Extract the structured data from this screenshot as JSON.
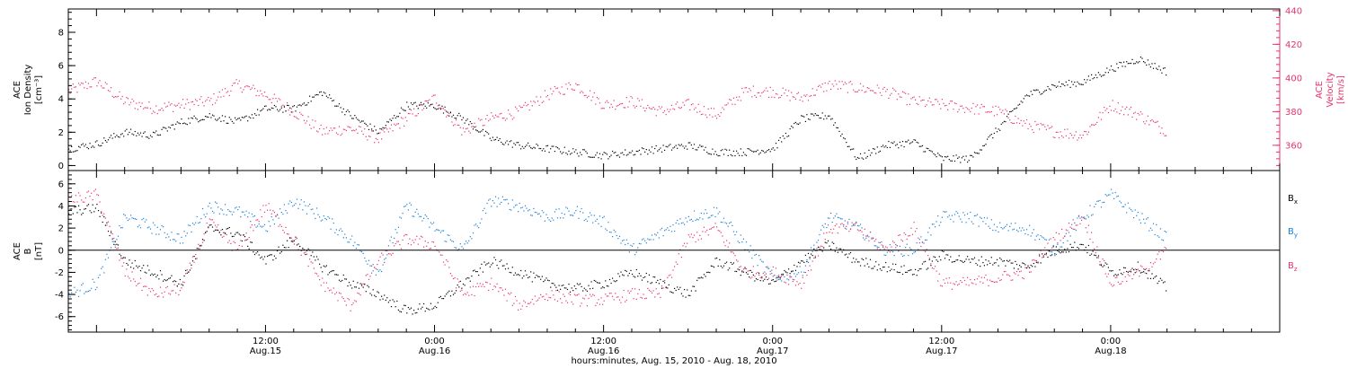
{
  "chart_data": {
    "type": "scatter",
    "time_axis": {
      "range": [
        "2010-08-14 22:00",
        "2010-08-18 12:00"
      ],
      "ticks": [
        {
          "t": "2010-08-15 12:00",
          "top": "12:00",
          "bottom": "Aug.15"
        },
        {
          "t": "2010-08-16 00:00",
          "top": "0:00",
          "bottom": "Aug.16"
        },
        {
          "t": "2010-08-16 12:00",
          "top": "12:00",
          "bottom": "Aug.16"
        },
        {
          "t": "2010-08-17 00:00",
          "top": "0:00",
          "bottom": "Aug.17"
        },
        {
          "t": "2010-08-17 12:00",
          "top": "12:00",
          "bottom": "Aug.17"
        },
        {
          "t": "2010-08-18 00:00",
          "top": "0:00",
          "bottom": "Aug.18"
        }
      ],
      "label": "hours:minutes, Aug. 15, 2010 - Aug. 18, 2010"
    },
    "panels": [
      {
        "name": "plasma",
        "left_axis": {
          "label_lines": [
            "ACE",
            "Ion Density",
            "[cm⁻³]"
          ],
          "ylim": [
            -0.3,
            9.4
          ],
          "ticks": [
            0,
            2,
            4,
            6,
            8
          ],
          "color": "#000000"
        },
        "right_axis": {
          "label_lines": [
            "ACE",
            "Velocity",
            "[km/s]"
          ],
          "ylim": [
            345,
            441
          ],
          "ticks": [
            360,
            380,
            400,
            420,
            440
          ],
          "color": "#e8336a"
        },
        "series": [
          {
            "name": "Ion Density",
            "axis": "left",
            "color": "#000000",
            "x": [
              "2010-08-14 22:00",
              "2010-08-15 00:00",
              "2010-08-15 02:00",
              "2010-08-15 04:00",
              "2010-08-15 06:00",
              "2010-08-15 08:00",
              "2010-08-15 10:00",
              "2010-08-15 12:00",
              "2010-08-15 14:00",
              "2010-08-15 16:00",
              "2010-08-15 18:00",
              "2010-08-15 20:00",
              "2010-08-15 22:00",
              "2010-08-16 00:00",
              "2010-08-16 02:00",
              "2010-08-16 04:00",
              "2010-08-16 06:00",
              "2010-08-16 08:00",
              "2010-08-16 10:00",
              "2010-08-16 12:00",
              "2010-08-16 14:00",
              "2010-08-16 16:00",
              "2010-08-16 18:00",
              "2010-08-16 20:00",
              "2010-08-16 22:00",
              "2010-08-17 00:00",
              "2010-08-17 02:00",
              "2010-08-17 04:00",
              "2010-08-17 06:00",
              "2010-08-17 08:00",
              "2010-08-17 10:00",
              "2010-08-17 12:00",
              "2010-08-17 14:00",
              "2010-08-17 16:00",
              "2010-08-17 18:00",
              "2010-08-17 20:00",
              "2010-08-17 22:00",
              "2010-08-18 00:00",
              "2010-08-18 02:00",
              "2010-08-18 04:00"
            ],
            "y": [
              1.0,
              1.3,
              2.0,
              1.8,
              2.6,
              3.0,
              2.6,
              3.4,
              3.4,
              4.4,
              3.0,
              2.0,
              3.6,
              3.6,
              2.8,
              1.6,
              1.2,
              1.0,
              0.8,
              0.6,
              0.8,
              1.0,
              1.2,
              0.8,
              0.8,
              1.0,
              2.8,
              3.0,
              0.4,
              1.2,
              1.4,
              0.4,
              0.4,
              2.2,
              4.2,
              4.8,
              5.0,
              5.8,
              6.4,
              5.6
            ]
          },
          {
            "name": "Velocity",
            "axis": "right",
            "color": "#e8336a",
            "x": [
              "2010-08-14 22:00",
              "2010-08-15 00:00",
              "2010-08-15 02:00",
              "2010-08-15 04:00",
              "2010-08-15 06:00",
              "2010-08-15 08:00",
              "2010-08-15 10:00",
              "2010-08-15 12:00",
              "2010-08-15 14:00",
              "2010-08-15 16:00",
              "2010-08-15 18:00",
              "2010-08-15 20:00",
              "2010-08-15 22:00",
              "2010-08-16 00:00",
              "2010-08-16 02:00",
              "2010-08-16 04:00",
              "2010-08-16 06:00",
              "2010-08-16 08:00",
              "2010-08-16 10:00",
              "2010-08-16 12:00",
              "2010-08-16 14:00",
              "2010-08-16 16:00",
              "2010-08-16 18:00",
              "2010-08-16 20:00",
              "2010-08-16 22:00",
              "2010-08-17 00:00",
              "2010-08-17 02:00",
              "2010-08-17 04:00",
              "2010-08-17 06:00",
              "2010-08-17 08:00",
              "2010-08-17 10:00",
              "2010-08-17 12:00",
              "2010-08-17 14:00",
              "2010-08-17 16:00",
              "2010-08-17 18:00",
              "2010-08-17 20:00",
              "2010-08-17 22:00",
              "2010-08-18 00:00",
              "2010-08-18 02:00",
              "2010-08-18 04:00"
            ],
            "y": [
              392,
              398,
              386,
              382,
              384,
              386,
              396,
              390,
              380,
              368,
              370,
              364,
              376,
              388,
              368,
              376,
              380,
              390,
              396,
              384,
              386,
              380,
              384,
              378,
              392,
              392,
              388,
              396,
              394,
              392,
              386,
              384,
              382,
              380,
              372,
              368,
              366,
              384,
              378,
              368
            ]
          }
        ]
      },
      {
        "name": "magnetic",
        "left_axis": {
          "label_lines": [
            "ACE",
            "B",
            "[nT]"
          ],
          "ylim": [
            -7.4,
            7.2
          ],
          "ticks": [
            -6,
            -4,
            -2,
            0,
            2,
            4,
            6
          ],
          "zero_line": true,
          "color": "#000000"
        },
        "legend": {
          "placement": "right",
          "entries": [
            {
              "label": "B",
              "sub": "x",
              "color": "#000000"
            },
            {
              "label": "B",
              "sub": "y",
              "color": "#1a7fd8"
            },
            {
              "label": "B",
              "sub": "z",
              "color": "#e8336a"
            }
          ]
        },
        "series": [
          {
            "name": "Bx",
            "color": "#000000",
            "x": [
              "2010-08-14 22:00",
              "2010-08-15 00:00",
              "2010-08-15 02:00",
              "2010-08-15 04:00",
              "2010-08-15 06:00",
              "2010-08-15 08:00",
              "2010-08-15 10:00",
              "2010-08-15 12:00",
              "2010-08-15 14:00",
              "2010-08-15 16:00",
              "2010-08-15 18:00",
              "2010-08-15 20:00",
              "2010-08-15 22:00",
              "2010-08-16 00:00",
              "2010-08-16 02:00",
              "2010-08-16 04:00",
              "2010-08-16 06:00",
              "2010-08-16 08:00",
              "2010-08-16 10:00",
              "2010-08-16 12:00",
              "2010-08-16 14:00",
              "2010-08-16 16:00",
              "2010-08-16 18:00",
              "2010-08-16 20:00",
              "2010-08-16 22:00",
              "2010-08-17 00:00",
              "2010-08-17 02:00",
              "2010-08-17 04:00",
              "2010-08-17 06:00",
              "2010-08-17 08:00",
              "2010-08-17 10:00",
              "2010-08-17 12:00",
              "2010-08-17 14:00",
              "2010-08-17 16:00",
              "2010-08-17 18:00",
              "2010-08-17 20:00",
              "2010-08-17 22:00",
              "2010-08-18 00:00",
              "2010-08-18 02:00",
              "2010-08-18 04:00"
            ],
            "y": [
              3.5,
              3.8,
              -1.0,
              -2.0,
              -3.0,
              2.0,
              1.5,
              -1.0,
              1.0,
              -1.5,
              -3.0,
              -4.0,
              -5.5,
              -5.0,
              -3.0,
              -1.0,
              -2.0,
              -3.0,
              -3.5,
              -3.0,
              -2.0,
              -3.0,
              -4.0,
              -1.0,
              -2.0,
              -3.0,
              -1.0,
              0.5,
              -1.0,
              -1.5,
              -2.0,
              -0.5,
              -1.0,
              -1.0,
              -1.5,
              0.0,
              0.5,
              -2.0,
              -1.5,
              -3.5
            ]
          },
          {
            "name": "By",
            "color": "#1a7fd8",
            "x": [
              "2010-08-14 22:00",
              "2010-08-15 00:00",
              "2010-08-15 02:00",
              "2010-08-15 04:00",
              "2010-08-15 06:00",
              "2010-08-15 08:00",
              "2010-08-15 10:00",
              "2010-08-15 12:00",
              "2010-08-15 14:00",
              "2010-08-15 16:00",
              "2010-08-15 18:00",
              "2010-08-15 20:00",
              "2010-08-15 22:00",
              "2010-08-16 00:00",
              "2010-08-16 02:00",
              "2010-08-16 04:00",
              "2010-08-16 06:00",
              "2010-08-16 08:00",
              "2010-08-16 10:00",
              "2010-08-16 12:00",
              "2010-08-16 14:00",
              "2010-08-16 16:00",
              "2010-08-16 18:00",
              "2010-08-16 20:00",
              "2010-08-16 22:00",
              "2010-08-17 00:00",
              "2010-08-17 02:00",
              "2010-08-17 04:00",
              "2010-08-17 06:00",
              "2010-08-17 08:00",
              "2010-08-17 10:00",
              "2010-08-17 12:00",
              "2010-08-17 14:00",
              "2010-08-17 16:00",
              "2010-08-17 18:00",
              "2010-08-17 20:00",
              "2010-08-17 22:00",
              "2010-08-18 00:00",
              "2010-08-18 02:00",
              "2010-08-18 04:00"
            ],
            "y": [
              -4.0,
              -3.0,
              3.0,
              2.0,
              1.0,
              4.0,
              3.5,
              2.0,
              4.5,
              3.0,
              1.0,
              -2.0,
              4.0,
              2.0,
              0.0,
              4.5,
              4.0,
              3.0,
              3.5,
              2.5,
              0.0,
              1.5,
              3.0,
              3.5,
              0.5,
              -2.5,
              -2.0,
              3.0,
              2.0,
              0.0,
              0.0,
              3.0,
              3.0,
              2.0,
              2.0,
              0.0,
              3.0,
              5.0,
              3.0,
              1.0
            ]
          },
          {
            "name": "Bz",
            "color": "#e8336a",
            "x": [
              "2010-08-14 22:00",
              "2010-08-15 00:00",
              "2010-08-15 02:00",
              "2010-08-15 04:00",
              "2010-08-15 06:00",
              "2010-08-15 08:00",
              "2010-08-15 10:00",
              "2010-08-15 12:00",
              "2010-08-15 14:00",
              "2010-08-15 16:00",
              "2010-08-15 18:00",
              "2010-08-15 20:00",
              "2010-08-15 22:00",
              "2010-08-16 00:00",
              "2010-08-16 02:00",
              "2010-08-16 04:00",
              "2010-08-16 06:00",
              "2010-08-16 08:00",
              "2010-08-16 10:00",
              "2010-08-16 12:00",
              "2010-08-16 14:00",
              "2010-08-16 16:00",
              "2010-08-16 18:00",
              "2010-08-16 20:00",
              "2010-08-16 22:00",
              "2010-08-17 00:00",
              "2010-08-17 02:00",
              "2010-08-17 04:00",
              "2010-08-17 06:00",
              "2010-08-17 08:00",
              "2010-08-17 10:00",
              "2010-08-17 12:00",
              "2010-08-17 14:00",
              "2010-08-17 16:00",
              "2010-08-17 18:00",
              "2010-08-17 20:00",
              "2010-08-17 22:00",
              "2010-08-18 00:00",
              "2010-08-18 02:00",
              "2010-08-18 04:00"
            ],
            "y": [
              4.5,
              5.0,
              -2.0,
              -4.0,
              -3.5,
              2.5,
              0.0,
              4.0,
              1.0,
              -3.0,
              -5.0,
              -1.0,
              1.0,
              0.5,
              -4.0,
              -3.0,
              -5.0,
              -4.0,
              -4.5,
              -4.5,
              -4.0,
              -4.0,
              1.0,
              2.0,
              -2.0,
              -2.0,
              -3.0,
              2.0,
              2.0,
              0.0,
              2.0,
              -3.0,
              -3.0,
              -2.5,
              -2.0,
              1.0,
              3.0,
              -3.0,
              -2.0,
              0.0
            ]
          }
        ]
      }
    ]
  }
}
